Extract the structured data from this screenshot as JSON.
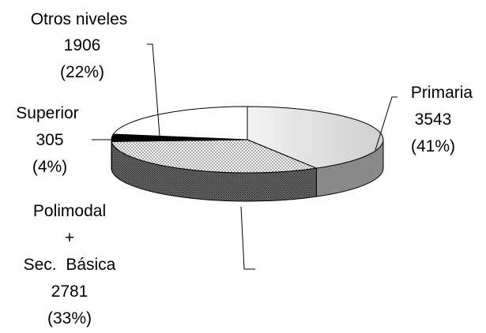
{
  "chart_data": {
    "type": "pie",
    "style": "3d-exploded-none",
    "slices": [
      {
        "key": "primaria",
        "label": "Primaria",
        "value": 3543,
        "percent": "(41%)",
        "color": "#d9d9d9",
        "pattern": "gradient-light-gray"
      },
      {
        "key": "polimodal",
        "label_lines": [
          "Polimodal",
          "+",
          "Sec.  Básica"
        ],
        "value": 2781,
        "percent": "(33%)",
        "color": "#9e9e9e",
        "pattern": "dots"
      },
      {
        "key": "superior",
        "label": "Superior",
        "value": 305,
        "percent": "(4%)",
        "color": "#000000",
        "pattern": "solid"
      },
      {
        "key": "otros",
        "label": "Otros niveles",
        "value": 1906,
        "percent": "(22%)",
        "color": "#ffffff",
        "pattern": "solid"
      }
    ]
  }
}
